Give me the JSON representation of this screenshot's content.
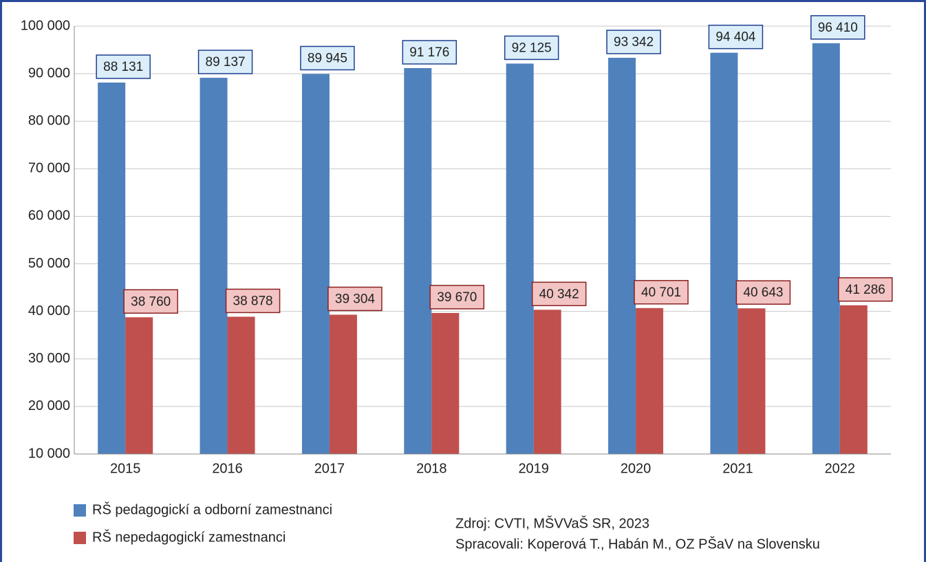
{
  "chart_data": {
    "type": "bar",
    "categories": [
      "2015",
      "2016",
      "2017",
      "2018",
      "2019",
      "2020",
      "2021",
      "2022"
    ],
    "series": [
      {
        "name": "RŠ pedagogickí a odborní zamestnanci",
        "color": "#4f81bd",
        "values": [
          88131,
          89137,
          89945,
          91176,
          92125,
          93342,
          94404,
          96410
        ],
        "value_labels": [
          "88 131",
          "89 137",
          "89 945",
          "91 176",
          "92 125",
          "93 342",
          "94 404",
          "96 410"
        ]
      },
      {
        "name": "RŠ nepedagogickí zamestnanci",
        "color": "#c0504d",
        "values": [
          38760,
          38878,
          39304,
          39670,
          40342,
          40701,
          40643,
          41286
        ],
        "value_labels": [
          "38 760",
          "38 878",
          "39 304",
          "39 670",
          "40 342",
          "40 701",
          "40 643",
          "41 286"
        ]
      }
    ],
    "ylim": [
      10000,
      100000
    ],
    "yticks": [
      {
        "value": 10000,
        "label": "10 000"
      },
      {
        "value": 20000,
        "label": "20 000"
      },
      {
        "value": 30000,
        "label": "30 000"
      },
      {
        "value": 40000,
        "label": "40 000"
      },
      {
        "value": 50000,
        "label": "50 000"
      },
      {
        "value": 60000,
        "label": "60 000"
      },
      {
        "value": 70000,
        "label": "70 000"
      },
      {
        "value": 80000,
        "label": "80 000"
      },
      {
        "value": 90000,
        "label": "90 000"
      },
      {
        "value": 100000,
        "label": "100 000"
      }
    ],
    "grid": true,
    "source": [
      "Zdroj: CVTI, MŠVVaŠ SR, 2023",
      "Spracovali: Koperová T., Habán M., OZ PŠaV na Slovensku"
    ]
  }
}
